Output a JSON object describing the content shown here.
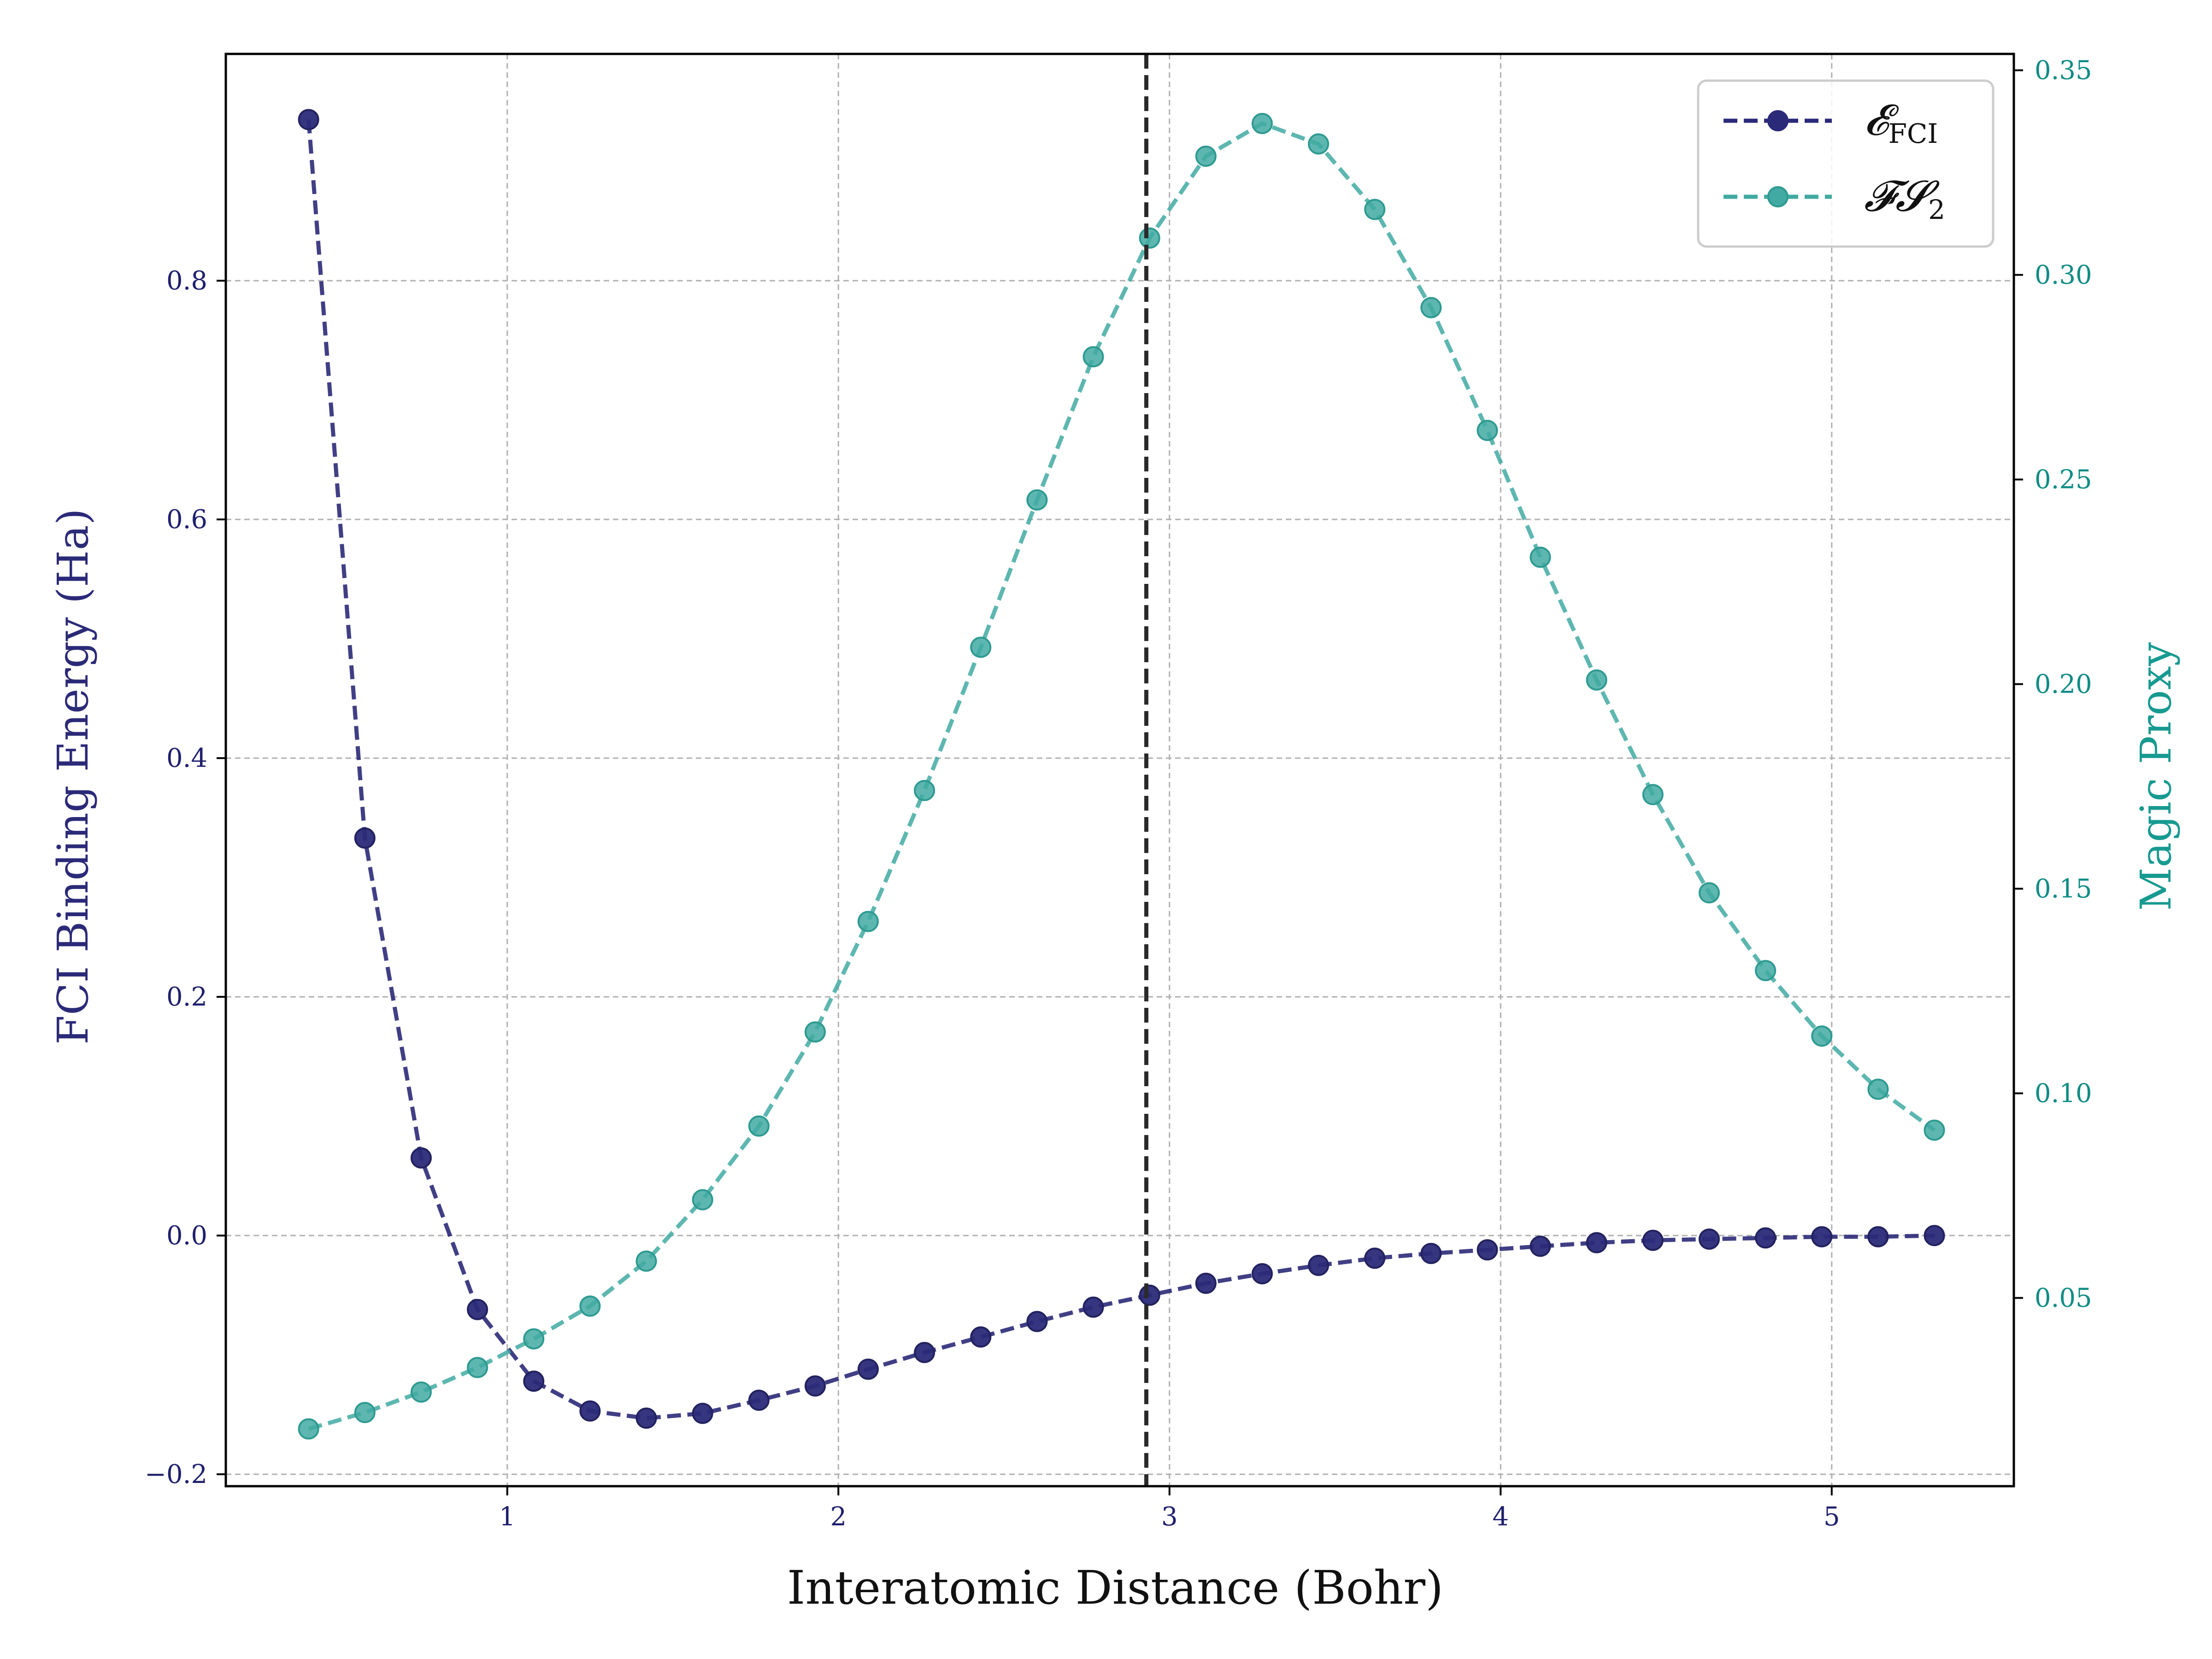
{
  "chart_data": {
    "type": "line",
    "xlabel": "Interatomic Distance (Bohr)",
    "ylabel": "FCI Binding Energy (Ha)",
    "ylabel_right": "Magic Proxy",
    "xlim": [
      0.15,
      5.55
    ],
    "ylim": [
      -0.21,
      0.99
    ],
    "ylim_right": [
      0.004,
      0.354
    ],
    "x_ticks": [
      1,
      2,
      3,
      4,
      5
    ],
    "x_tick_labels": [
      "1",
      "2",
      "3",
      "4",
      "5"
    ],
    "y_ticks": [
      -0.2,
      0.0,
      0.2,
      0.4,
      0.6,
      0.8
    ],
    "y_tick_labels": [
      "−0.2",
      "0.0",
      "0.2",
      "0.4",
      "0.6",
      "0.8"
    ],
    "y_right_ticks": [
      0.05,
      0.1,
      0.15,
      0.2,
      0.25,
      0.3,
      0.35
    ],
    "y_right_tick_labels": [
      "0.05",
      "0.10",
      "0.15",
      "0.20",
      "0.25",
      "0.30",
      "0.35"
    ],
    "grid": true,
    "legend_position": "top-right",
    "vline": {
      "x": 2.93,
      "style": "dashed",
      "color": "#2a2a2a"
    },
    "x": [
      0.4,
      0.57,
      0.74,
      0.91,
      1.08,
      1.25,
      1.42,
      1.59,
      1.76,
      1.93,
      2.09,
      2.26,
      2.43,
      2.6,
      2.77,
      2.94,
      3.11,
      3.28,
      3.45,
      3.62,
      3.79,
      3.96,
      4.12,
      4.29,
      4.46,
      4.63,
      4.8,
      4.97,
      5.14,
      5.31
    ],
    "series": [
      {
        "name": "𝓔",
        "name_sub": "FCI",
        "axis": "left",
        "color": "#2b2a78",
        "values": [
          0.935,
          0.333,
          0.065,
          -0.062,
          -0.122,
          -0.147,
          -0.153,
          -0.149,
          -0.138,
          -0.126,
          -0.112,
          -0.098,
          -0.085,
          -0.072,
          -0.06,
          -0.05,
          -0.04,
          -0.032,
          -0.025,
          -0.019,
          -0.015,
          -0.012,
          -0.009,
          -0.006,
          -0.004,
          -0.003,
          -0.002,
          -0.001,
          -0.001,
          0.0
        ]
      },
      {
        "name": "𝓕𝓢",
        "name_sub": "2",
        "axis": "right",
        "color": "#41aaa2",
        "values": [
          0.018,
          0.022,
          0.027,
          0.033,
          0.04,
          0.048,
          0.059,
          0.074,
          0.092,
          0.115,
          0.142,
          0.174,
          0.209,
          0.245,
          0.28,
          0.309,
          0.329,
          0.337,
          0.332,
          0.316,
          0.292,
          0.262,
          0.231,
          0.201,
          0.173,
          0.149,
          0.13,
          0.114,
          0.101,
          0.091
        ]
      }
    ]
  }
}
